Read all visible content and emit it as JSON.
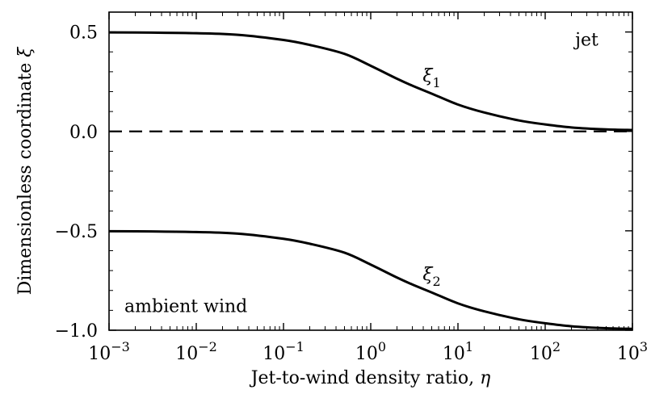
{
  "chart_data": {
    "type": "line",
    "title": "",
    "xlabel": "Jet-to-wind density ratio, η",
    "ylabel": "Dimensionless coordinate ξ",
    "xscale": "log",
    "xlim": [
      0.001,
      1000
    ],
    "ylim": [
      -1.0,
      0.6
    ],
    "grid": false,
    "x_ticks": [
      {
        "value": 0.001,
        "base": "10",
        "exp": "−3"
      },
      {
        "value": 0.01,
        "base": "10",
        "exp": "−2"
      },
      {
        "value": 0.1,
        "base": "10",
        "exp": "−1"
      },
      {
        "value": 1,
        "base": "10",
        "exp": "0"
      },
      {
        "value": 10,
        "base": "10",
        "exp": "1"
      },
      {
        "value": 100,
        "base": "10",
        "exp": "2"
      },
      {
        "value": 1000,
        "base": "10",
        "exp": "3"
      }
    ],
    "y_ticks": [
      {
        "value": 0.5,
        "label": "0.5"
      },
      {
        "value": 0.0,
        "label": "0.0"
      },
      {
        "value": -0.5,
        "label": "−0.5"
      },
      {
        "value": -1.0,
        "label": "−1.0"
      }
    ],
    "series": [
      {
        "name": "ξ1",
        "label_base": "ξ",
        "label_sub": "1",
        "style": "solid",
        "x": [
          0.001,
          0.003,
          0.01,
          0.03,
          0.1,
          0.2,
          0.5,
          1,
          2,
          3,
          5,
          10,
          20,
          50,
          100,
          200,
          500,
          1000
        ],
        "y": [
          0.498,
          0.497,
          0.494,
          0.486,
          0.46,
          0.435,
          0.39,
          0.33,
          0.265,
          0.23,
          0.19,
          0.135,
          0.095,
          0.055,
          0.035,
          0.02,
          0.01,
          0.007
        ]
      },
      {
        "name": "ξ2",
        "label_base": "ξ",
        "label_sub": "2",
        "style": "solid",
        "x": [
          0.001,
          0.003,
          0.01,
          0.03,
          0.1,
          0.2,
          0.5,
          1,
          2,
          3,
          5,
          10,
          20,
          50,
          100,
          200,
          500,
          1000
        ],
        "y": [
          -0.502,
          -0.503,
          -0.506,
          -0.514,
          -0.54,
          -0.565,
          -0.61,
          -0.67,
          -0.735,
          -0.77,
          -0.81,
          -0.865,
          -0.905,
          -0.945,
          -0.965,
          -0.98,
          -0.99,
          -0.993
        ]
      },
      {
        "name": "zero line",
        "style": "dashed",
        "x": [
          0.001,
          1000
        ],
        "y": [
          0.0,
          0.0
        ]
      }
    ],
    "annotations": [
      {
        "text": "jet",
        "x": 300,
        "y": 0.46
      },
      {
        "text": "ambient wind",
        "x": 0.0015,
        "y": -0.88
      },
      {
        "text_ref": "ξ1",
        "x": 5,
        "y": 0.28
      },
      {
        "text_ref": "ξ2",
        "x": 5,
        "y": -0.72
      }
    ]
  }
}
